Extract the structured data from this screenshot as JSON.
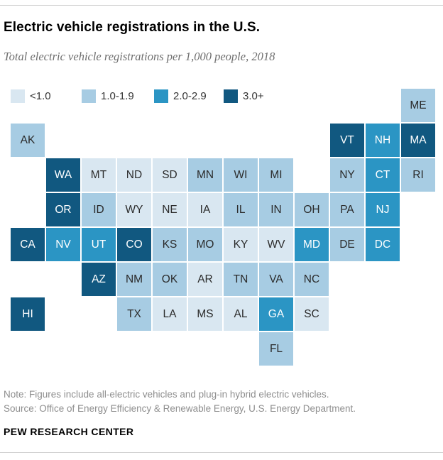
{
  "header": {
    "title": "Electric vehicle registrations in the U.S.",
    "subtitle": "Total electric vehicle registrations per 1,000 people, 2018"
  },
  "chart_data": {
    "type": "heatmap",
    "subtype": "state-tile-grid-map",
    "title": "Electric vehicle registrations in the U.S.",
    "subtitle": "Total electric vehicle registrations per 1,000 people, 2018",
    "unit": "electric vehicle registrations per 1,000 people",
    "year": "2018",
    "legend_position": "top-left",
    "bins": [
      {
        "key": "lt1",
        "label": "<1.0",
        "color": "#d9e7f1",
        "text_color": "#2b2b2b"
      },
      {
        "key": "1to2",
        "label": "1.0-1.9",
        "color": "#a7cce3",
        "text_color": "#2b2b2b"
      },
      {
        "key": "2to3",
        "label": "2.0-2.9",
        "color": "#2b95c4",
        "text_color": "#ffffff"
      },
      {
        "key": "3plus",
        "label": "3.0+",
        "color": "#115880",
        "text_color": "#ffffff"
      }
    ],
    "states": [
      {
        "abbr": "ME",
        "row": 0,
        "col": 11,
        "bin": "1to2"
      },
      {
        "abbr": "AK",
        "row": 1,
        "col": 0,
        "bin": "1to2"
      },
      {
        "abbr": "VT",
        "row": 1,
        "col": 9,
        "bin": "3plus"
      },
      {
        "abbr": "NH",
        "row": 1,
        "col": 10,
        "bin": "2to3"
      },
      {
        "abbr": "MA",
        "row": 1,
        "col": 11,
        "bin": "3plus"
      },
      {
        "abbr": "WA",
        "row": 2,
        "col": 1,
        "bin": "3plus"
      },
      {
        "abbr": "MT",
        "row": 2,
        "col": 2,
        "bin": "lt1"
      },
      {
        "abbr": "ND",
        "row": 2,
        "col": 3,
        "bin": "lt1"
      },
      {
        "abbr": "SD",
        "row": 2,
        "col": 4,
        "bin": "lt1"
      },
      {
        "abbr": "MN",
        "row": 2,
        "col": 5,
        "bin": "1to2"
      },
      {
        "abbr": "WI",
        "row": 2,
        "col": 6,
        "bin": "1to2"
      },
      {
        "abbr": "MI",
        "row": 2,
        "col": 7,
        "bin": "1to2"
      },
      {
        "abbr": "NY",
        "row": 2,
        "col": 9,
        "bin": "1to2"
      },
      {
        "abbr": "CT",
        "row": 2,
        "col": 10,
        "bin": "2to3"
      },
      {
        "abbr": "RI",
        "row": 2,
        "col": 11,
        "bin": "1to2"
      },
      {
        "abbr": "OR",
        "row": 3,
        "col": 1,
        "bin": "3plus"
      },
      {
        "abbr": "ID",
        "row": 3,
        "col": 2,
        "bin": "1to2"
      },
      {
        "abbr": "WY",
        "row": 3,
        "col": 3,
        "bin": "lt1"
      },
      {
        "abbr": "NE",
        "row": 3,
        "col": 4,
        "bin": "lt1"
      },
      {
        "abbr": "IA",
        "row": 3,
        "col": 5,
        "bin": "lt1"
      },
      {
        "abbr": "IL",
        "row": 3,
        "col": 6,
        "bin": "1to2"
      },
      {
        "abbr": "IN",
        "row": 3,
        "col": 7,
        "bin": "1to2"
      },
      {
        "abbr": "OH",
        "row": 3,
        "col": 8,
        "bin": "1to2"
      },
      {
        "abbr": "PA",
        "row": 3,
        "col": 9,
        "bin": "1to2"
      },
      {
        "abbr": "NJ",
        "row": 3,
        "col": 10,
        "bin": "2to3"
      },
      {
        "abbr": "CA",
        "row": 4,
        "col": 0,
        "bin": "3plus"
      },
      {
        "abbr": "NV",
        "row": 4,
        "col": 1,
        "bin": "2to3"
      },
      {
        "abbr": "UT",
        "row": 4,
        "col": 2,
        "bin": "2to3"
      },
      {
        "abbr": "CO",
        "row": 4,
        "col": 3,
        "bin": "3plus"
      },
      {
        "abbr": "KS",
        "row": 4,
        "col": 4,
        "bin": "1to2"
      },
      {
        "abbr": "MO",
        "row": 4,
        "col": 5,
        "bin": "1to2"
      },
      {
        "abbr": "KY",
        "row": 4,
        "col": 6,
        "bin": "lt1"
      },
      {
        "abbr": "WV",
        "row": 4,
        "col": 7,
        "bin": "lt1"
      },
      {
        "abbr": "MD",
        "row": 4,
        "col": 8,
        "bin": "2to3"
      },
      {
        "abbr": "DE",
        "row": 4,
        "col": 9,
        "bin": "1to2"
      },
      {
        "abbr": "DC",
        "row": 4,
        "col": 10,
        "bin": "2to3"
      },
      {
        "abbr": "AZ",
        "row": 5,
        "col": 2,
        "bin": "3plus"
      },
      {
        "abbr": "NM",
        "row": 5,
        "col": 3,
        "bin": "1to2"
      },
      {
        "abbr": "OK",
        "row": 5,
        "col": 4,
        "bin": "1to2"
      },
      {
        "abbr": "AR",
        "row": 5,
        "col": 5,
        "bin": "lt1"
      },
      {
        "abbr": "TN",
        "row": 5,
        "col": 6,
        "bin": "1to2"
      },
      {
        "abbr": "VA",
        "row": 5,
        "col": 7,
        "bin": "1to2"
      },
      {
        "abbr": "NC",
        "row": 5,
        "col": 8,
        "bin": "1to2"
      },
      {
        "abbr": "HI",
        "row": 6,
        "col": 0,
        "bin": "3plus"
      },
      {
        "abbr": "TX",
        "row": 6,
        "col": 3,
        "bin": "1to2"
      },
      {
        "abbr": "LA",
        "row": 6,
        "col": 4,
        "bin": "lt1"
      },
      {
        "abbr": "MS",
        "row": 6,
        "col": 5,
        "bin": "lt1"
      },
      {
        "abbr": "AL",
        "row": 6,
        "col": 6,
        "bin": "lt1"
      },
      {
        "abbr": "GA",
        "row": 6,
        "col": 7,
        "bin": "2to3"
      },
      {
        "abbr": "SC",
        "row": 6,
        "col": 8,
        "bin": "lt1"
      },
      {
        "abbr": "FL",
        "row": 7,
        "col": 7,
        "bin": "1to2"
      }
    ]
  },
  "footer": {
    "note": "Note: Figures include all-electric vehicles and plug-in hybrid electric vehicles.",
    "source": "Source: Office of Energy Efficiency & Renewable Energy, U.S. Energy Department.",
    "brand": "PEW RESEARCH CENTER"
  }
}
